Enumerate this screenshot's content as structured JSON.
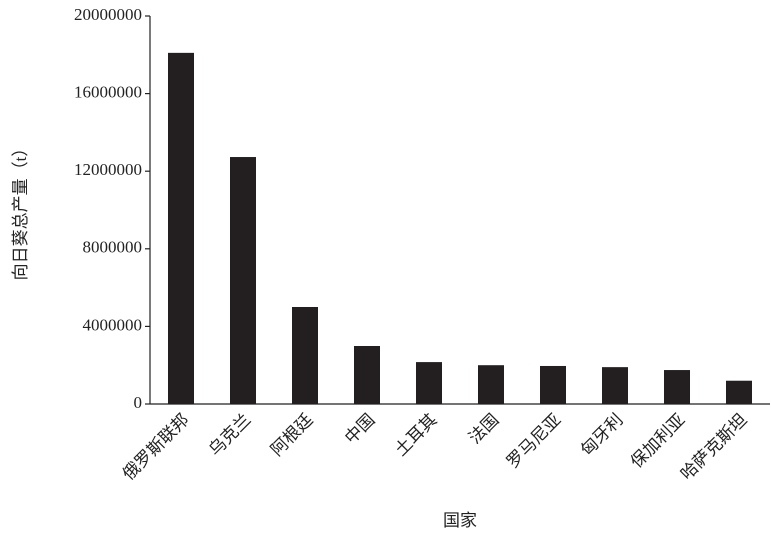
{
  "chart_data": {
    "type": "bar",
    "x_label": "国家",
    "y_label": "向日葵总产量（t）",
    "categories": [
      "俄罗斯联邦",
      "乌克兰",
      "阿根廷",
      "中国",
      "土耳其",
      "法国",
      "罗马尼亚",
      "匈牙利",
      "保加利亚",
      "哈萨克斯坦"
    ],
    "values": [
      18100000,
      12730000,
      5000000,
      2990000,
      2160000,
      2000000,
      1960000,
      1900000,
      1750000,
      1200000
    ],
    "color": "#231f20",
    "ylim": [
      0,
      20000000
    ],
    "yticks": [
      0,
      4000000,
      8000000,
      12000000,
      16000000,
      20000000
    ],
    "grid": false
  }
}
